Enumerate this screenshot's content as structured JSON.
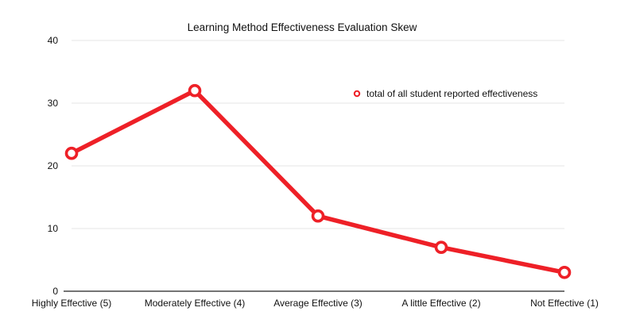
{
  "chart_data": {
    "type": "line",
    "title": "Learning Method Effectiveness Evaluation Skew",
    "xlabel": "",
    "ylabel": "",
    "categories": [
      "Highly Effective  (5)",
      "Moderately Effective  (4)",
      "Average Effective (3)",
      "A little Effective (2)",
      "Not Effective (1)"
    ],
    "series": [
      {
        "name": "total of all student reported effectiveness",
        "values": [
          22,
          32,
          12,
          7,
          3
        ]
      }
    ],
    "ylim": [
      0,
      40
    ],
    "yticks": [
      "0",
      "10",
      "20",
      "30",
      "40"
    ],
    "grid": true,
    "legend": "top-right",
    "colors": {
      "series": "#ee2027",
      "grid": "#e4e4e4",
      "axis": "#222222"
    }
  }
}
